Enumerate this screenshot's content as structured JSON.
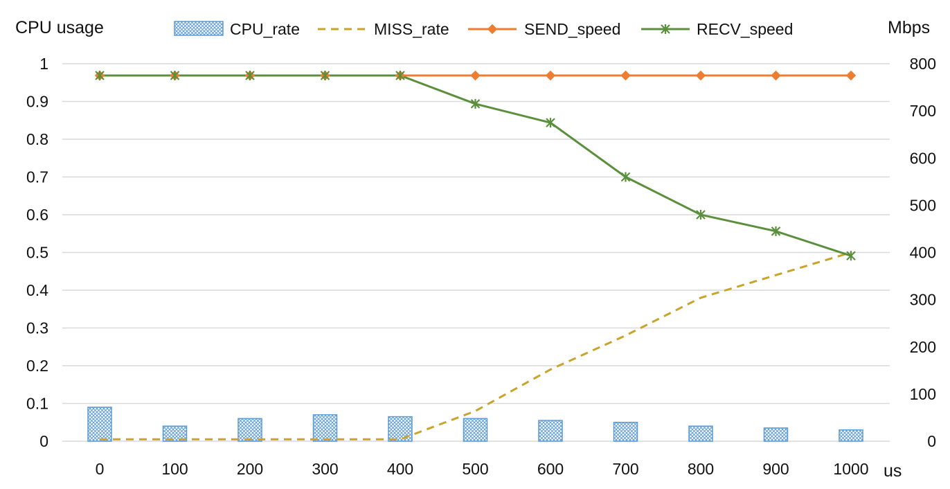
{
  "chart_data": {
    "type": "bar",
    "x_unit_label": "us",
    "categories": [
      "0",
      "100",
      "200",
      "300",
      "400",
      "500",
      "600",
      "700",
      "800",
      "900",
      "1000"
    ],
    "left_axis": {
      "title": "CPU usage",
      "ylim": [
        0,
        1
      ],
      "ticks": [
        "0",
        "0.1",
        "0.2",
        "0.3",
        "0.4",
        "0.5",
        "0.6",
        "0.7",
        "0.8",
        "0.9",
        "1"
      ]
    },
    "right_axis": {
      "title": "Mbps",
      "ylim": [
        0,
        800
      ],
      "ticks": [
        "0",
        "100",
        "200",
        "300",
        "400",
        "500",
        "600",
        "700",
        "800"
      ]
    },
    "grid": true,
    "legend_position": "top",
    "series": [
      {
        "name": "CPU_rate",
        "type": "bar",
        "axis": "left",
        "color": "#5b9bd5",
        "values": [
          0.09,
          0.04,
          0.06,
          0.07,
          0.065,
          0.06,
          0.055,
          0.05,
          0.04,
          0.035,
          0.03
        ]
      },
      {
        "name": "MISS_rate",
        "type": "line-dashed",
        "axis": "left",
        "color": "#c9a42a",
        "values": [
          0.005,
          0.005,
          0.005,
          0.005,
          0.005,
          0.08,
          0.19,
          0.28,
          0.38,
          0.44,
          0.5
        ]
      },
      {
        "name": "SEND_speed",
        "type": "line-diamond",
        "axis": "right",
        "color": "#ed7d31",
        "values": [
          775,
          775,
          775,
          775,
          775,
          775,
          775,
          775,
          775,
          775,
          775
        ]
      },
      {
        "name": "RECV_speed",
        "type": "line-star",
        "axis": "right",
        "color": "#5a8f3c",
        "values": [
          775,
          775,
          775,
          775,
          775,
          715,
          675,
          560,
          480,
          445,
          393
        ]
      }
    ]
  }
}
